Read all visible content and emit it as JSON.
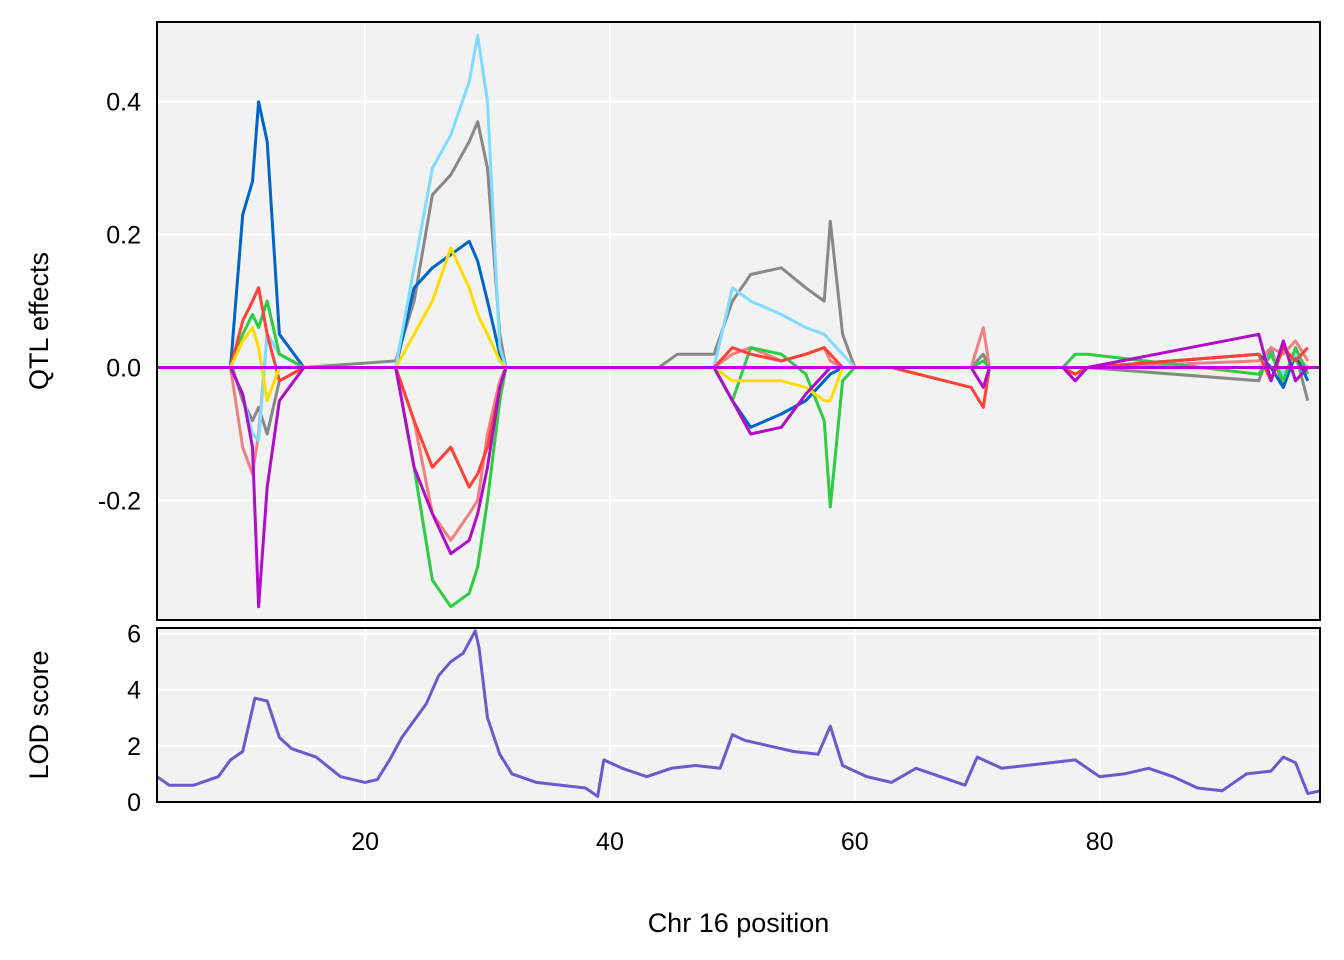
{
  "chart_data": [
    {
      "type": "line",
      "panel": "effects",
      "ylabel": "QTL effects",
      "xlim": [
        3,
        98
      ],
      "ylim": [
        -0.38,
        0.52
      ],
      "yticks": [
        -0.2,
        0.0,
        0.2,
        0.4
      ],
      "ytick_labels": [
        "-0.2",
        "0.0",
        "0.2",
        "0.4"
      ],
      "grid": true,
      "colors": [
        "#888888",
        "#F08080",
        "#0064C9",
        "#7FDBFF",
        "#2ECC40",
        "#FF4136",
        "#FFDC00",
        "#B10DC9"
      ],
      "x": [
        9,
        10,
        10.8,
        11.3,
        12,
        13,
        15,
        22.5,
        24,
        25.5,
        27,
        28.5,
        29.2,
        30,
        31,
        31.5,
        44,
        45.5,
        48.5,
        50,
        51.5,
        54,
        56,
        57.5,
        58,
        59,
        60,
        63,
        69.5,
        70.5,
        71,
        77,
        78,
        79,
        93,
        94,
        95,
        96,
        97
      ],
      "series": [
        {
          "values": [
            0.01,
            -0.05,
            -0.08,
            -0.06,
            -0.1,
            -0.02,
            0,
            0.01,
            0.1,
            0.26,
            0.29,
            0.34,
            0.37,
            0.3,
            0.05,
            0,
            0,
            0.02,
            0.02,
            0.1,
            0.14,
            0.15,
            0.12,
            0.1,
            0.22,
            0.05,
            0,
            0,
            0,
            0.02,
            0,
            0,
            0,
            0,
            -0.02,
            0.03,
            -0.03,
            0.02,
            -0.05
          ]
        },
        {
          "values": [
            0,
            -0.12,
            -0.16,
            -0.1,
            0.05,
            0.02,
            0,
            0,
            -0.08,
            -0.22,
            -0.26,
            -0.22,
            -0.2,
            -0.1,
            -0.02,
            0,
            0,
            0,
            0,
            0.02,
            0.03,
            0.01,
            0.02,
            0.03,
            0.01,
            0,
            0,
            0,
            0,
            0.06,
            0,
            0,
            0,
            0,
            0.01,
            0.03,
            0.02,
            0.04,
            0.01
          ]
        },
        {
          "values": [
            0,
            0.23,
            0.28,
            0.4,
            0.34,
            0.05,
            0,
            0,
            0.12,
            0.15,
            0.17,
            0.19,
            0.16,
            0.1,
            0.02,
            0,
            0,
            0,
            0,
            -0.05,
            -0.09,
            -0.07,
            -0.05,
            -0.02,
            -0.01,
            0,
            0,
            0,
            0,
            0,
            0,
            0,
            0,
            0,
            0.02,
            0,
            -0.03,
            0.02,
            -0.02
          ]
        },
        {
          "values": [
            0,
            -0.04,
            -0.1,
            -0.11,
            0.05,
            0.02,
            0,
            0,
            0.15,
            0.3,
            0.35,
            0.43,
            0.5,
            0.4,
            0.03,
            0,
            0,
            0,
            0,
            0.12,
            0.1,
            0.08,
            0.06,
            0.05,
            0.04,
            0.02,
            0,
            0,
            0,
            0.01,
            0,
            0,
            0,
            0,
            0,
            0.02,
            -0.01,
            0.02,
            0
          ]
        },
        {
          "values": [
            0,
            0.05,
            0.08,
            0.06,
            0.1,
            0.02,
            0,
            0,
            -0.15,
            -0.32,
            -0.36,
            -0.34,
            -0.3,
            -0.2,
            -0.05,
            0,
            0,
            0,
            0,
            -0.05,
            0.03,
            0.02,
            -0.01,
            -0.08,
            -0.21,
            -0.02,
            0,
            0,
            0,
            0.01,
            0,
            0,
            0.02,
            0.02,
            -0.01,
            0.02,
            -0.02,
            0.03,
            -0.01
          ]
        },
        {
          "values": [
            0,
            0.07,
            0.1,
            0.12,
            0.05,
            -0.02,
            0,
            0,
            -0.08,
            -0.15,
            -0.12,
            -0.18,
            -0.16,
            -0.12,
            -0.03,
            0,
            0,
            0,
            0,
            0.03,
            0.02,
            0.01,
            0.02,
            0.03,
            0.02,
            0,
            0,
            0,
            -0.03,
            -0.06,
            0,
            0,
            -0.01,
            0,
            0.02,
            -0.02,
            0.03,
            0.01,
            0.03
          ]
        },
        {
          "values": [
            0,
            0.04,
            0.06,
            0.03,
            -0.05,
            0,
            0,
            0,
            0.05,
            0.1,
            0.18,
            0.12,
            0.08,
            0.05,
            0.01,
            0,
            0,
            0,
            0,
            -0.02,
            -0.02,
            -0.02,
            -0.03,
            -0.05,
            -0.05,
            0,
            0,
            0,
            0,
            0,
            0,
            0,
            0,
            0,
            0,
            0,
            0,
            0,
            0
          ]
        },
        {
          "values": [
            0,
            -0.04,
            -0.12,
            -0.36,
            -0.18,
            -0.05,
            0,
            0,
            -0.15,
            -0.22,
            -0.28,
            -0.26,
            -0.22,
            -0.15,
            -0.03,
            0,
            0,
            0,
            0,
            -0.05,
            -0.1,
            -0.09,
            -0.04,
            -0.01,
            0,
            0,
            0,
            0,
            0,
            -0.03,
            0,
            0,
            -0.02,
            0,
            0.05,
            -0.02,
            0.04,
            -0.02,
            0
          ]
        }
      ]
    },
    {
      "type": "line",
      "panel": "lod",
      "xlabel": "Chr 16 position",
      "ylabel": "LOD score",
      "xlim": [
        3,
        98
      ],
      "ylim": [
        0,
        6.2
      ],
      "xticks": [
        20,
        40,
        60,
        80
      ],
      "xtick_labels": [
        "20",
        "40",
        "60",
        "80"
      ],
      "yticks": [
        0,
        2,
        4,
        6
      ],
      "ytick_labels": [
        "0",
        "2",
        "4",
        "6"
      ],
      "grid": true,
      "color": "#6A5ACD",
      "x": [
        3,
        4,
        6,
        8,
        9,
        10,
        11,
        12,
        13,
        14,
        16,
        18,
        20,
        21,
        22,
        23,
        24,
        25,
        26,
        27,
        28,
        29,
        29.3,
        30,
        31,
        32,
        34,
        36,
        38,
        39,
        39.5,
        41,
        43,
        45,
        47,
        49,
        50,
        51,
        53,
        55,
        57,
        58,
        59,
        61,
        63,
        65,
        67,
        69,
        70,
        72,
        74,
        76,
        78,
        80,
        82,
        84,
        86,
        88,
        90,
        92,
        94,
        95,
        96,
        97,
        98
      ],
      "values": [
        0.9,
        0.6,
        0.6,
        0.9,
        1.5,
        1.8,
        3.7,
        3.6,
        2.3,
        1.9,
        1.6,
        0.9,
        0.7,
        0.8,
        1.5,
        2.3,
        2.9,
        3.5,
        4.5,
        5.0,
        5.3,
        6.1,
        5.5,
        3.0,
        1.7,
        1.0,
        0.7,
        0.6,
        0.5,
        0.2,
        1.5,
        1.2,
        0.9,
        1.2,
        1.3,
        1.2,
        2.4,
        2.2,
        2.0,
        1.8,
        1.7,
        2.7,
        1.3,
        0.9,
        0.7,
        1.2,
        0.9,
        0.6,
        1.6,
        1.2,
        1.3,
        1.4,
        1.5,
        0.9,
        1.0,
        1.2,
        0.9,
        0.5,
        0.4,
        1.0,
        1.1,
        1.6,
        1.4,
        0.3,
        0.4
      ]
    }
  ]
}
